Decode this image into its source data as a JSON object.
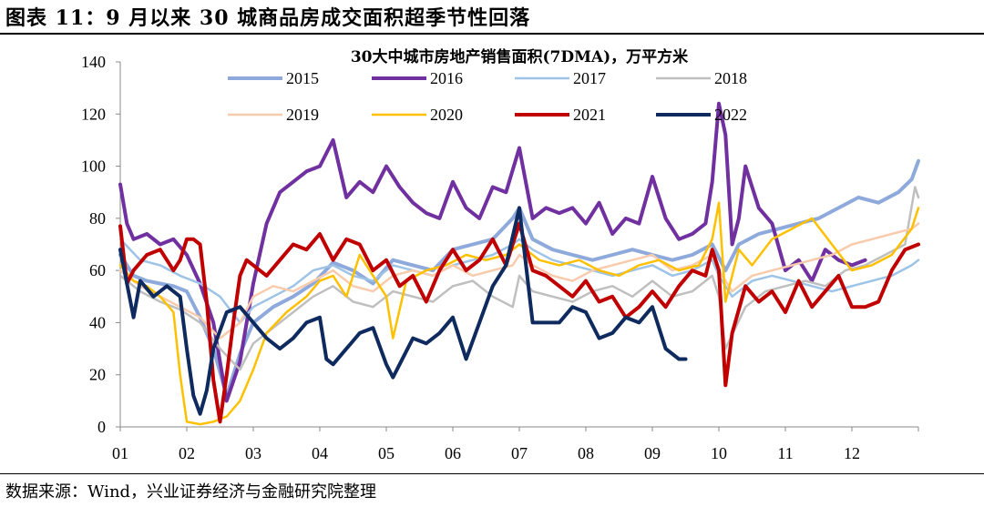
{
  "figure": {
    "title": "图表 11：9 月以来 30 城商品房成交面积超季节性回落",
    "source": "数据来源：Wind，兴业证券经济与金融研究院整理"
  },
  "chart_data": {
    "type": "line",
    "title": "30大中城市房地产销售面积(7DMA)，万平方米",
    "xlabel": "",
    "ylabel": "",
    "ylim": [
      0,
      140
    ],
    "yticks": [
      0,
      20,
      40,
      60,
      80,
      100,
      120,
      140
    ],
    "xlim": [
      1,
      13
    ],
    "xtick_positions": [
      1,
      2,
      3,
      4,
      5,
      6,
      7,
      8,
      9,
      10,
      11,
      12
    ],
    "xtick_labels": [
      "01",
      "02",
      "03",
      "04",
      "05",
      "06",
      "07",
      "08",
      "09",
      "10",
      "11",
      "12"
    ],
    "grid": false,
    "legend_position": "top-center",
    "series": [
      {
        "name": "2015",
        "color": "#8ea9db",
        "width": 4,
        "x": [
          1.0,
          1.2,
          1.4,
          1.6,
          1.8,
          2.0,
          2.2,
          2.4,
          2.6,
          2.8,
          3.0,
          3.3,
          3.6,
          3.9,
          4.2,
          4.5,
          4.8,
          5.1,
          5.4,
          5.7,
          6.0,
          6.3,
          6.6,
          6.9,
          7.0,
          7.2,
          7.5,
          7.8,
          8.1,
          8.4,
          8.7,
          9.0,
          9.3,
          9.6,
          9.9,
          10.0,
          10.1,
          10.3,
          10.6,
          10.9,
          11.2,
          11.5,
          11.8,
          12.1,
          12.4,
          12.7,
          12.9,
          13.0
        ],
        "y": [
          66,
          58,
          56,
          55,
          54,
          52,
          42,
          30,
          12,
          28,
          40,
          46,
          50,
          55,
          63,
          60,
          55,
          64,
          62,
          60,
          68,
          70,
          72,
          80,
          84,
          72,
          68,
          66,
          64,
          66,
          68,
          66,
          64,
          66,
          70,
          65,
          60,
          70,
          74,
          76,
          78,
          80,
          84,
          88,
          86,
          90,
          95,
          102
        ]
      },
      {
        "name": "2016",
        "color": "#7030a0",
        "width": 4,
        "x": [
          1.0,
          1.1,
          1.2,
          1.4,
          1.6,
          1.8,
          2.0,
          2.2,
          2.4,
          2.6,
          2.8,
          3.0,
          3.2,
          3.4,
          3.6,
          3.8,
          4.0,
          4.2,
          4.4,
          4.6,
          4.8,
          5.0,
          5.2,
          5.4,
          5.6,
          5.8,
          6.0,
          6.2,
          6.4,
          6.6,
          6.8,
          7.0,
          7.2,
          7.4,
          7.6,
          7.8,
          8.0,
          8.2,
          8.4,
          8.6,
          8.8,
          9.0,
          9.2,
          9.4,
          9.6,
          9.8,
          9.9,
          10.0,
          10.1,
          10.2,
          10.3,
          10.4,
          10.5,
          10.6,
          10.8,
          11.0,
          11.2,
          11.4,
          11.6,
          11.8,
          12.0,
          12.2
        ],
        "y": [
          93,
          78,
          72,
          74,
          70,
          72,
          66,
          55,
          40,
          10,
          25,
          55,
          78,
          90,
          94,
          98,
          100,
          110,
          88,
          94,
          90,
          100,
          92,
          86,
          82,
          80,
          94,
          84,
          80,
          92,
          90,
          107,
          80,
          84,
          82,
          84,
          78,
          86,
          74,
          80,
          78,
          96,
          80,
          72,
          74,
          78,
          94,
          124,
          112,
          70,
          80,
          100,
          92,
          84,
          78,
          60,
          64,
          56,
          68,
          64,
          62,
          64
        ]
      },
      {
        "name": "2017",
        "color": "#9dc3e6",
        "width": 2.5,
        "x": [
          1.0,
          1.3,
          1.6,
          1.9,
          2.2,
          2.5,
          2.8,
          3.0,
          3.3,
          3.6,
          3.9,
          4.2,
          4.5,
          4.8,
          5.1,
          5.4,
          5.7,
          6.0,
          6.3,
          6.6,
          6.9,
          7.0,
          7.2,
          7.5,
          7.8,
          8.1,
          8.4,
          8.7,
          9.0,
          9.3,
          9.6,
          9.9,
          10.0,
          10.2,
          10.5,
          10.8,
          11.1,
          11.4,
          11.7,
          12.0,
          12.3,
          12.6,
          12.9,
          13.0
        ],
        "y": [
          72,
          64,
          62,
          58,
          55,
          50,
          40,
          46,
          50,
          54,
          60,
          62,
          58,
          56,
          62,
          60,
          58,
          62,
          64,
          66,
          70,
          72,
          68,
          64,
          62,
          60,
          58,
          60,
          62,
          58,
          60,
          64,
          58,
          50,
          56,
          58,
          56,
          54,
          52,
          54,
          56,
          58,
          62,
          64
        ]
      },
      {
        "name": "2018",
        "color": "#bfbfbf",
        "width": 2.5,
        "x": [
          1.0,
          1.3,
          1.6,
          1.9,
          2.2,
          2.5,
          2.8,
          3.0,
          3.3,
          3.6,
          3.9,
          4.2,
          4.5,
          4.8,
          5.1,
          5.4,
          5.7,
          6.0,
          6.3,
          6.6,
          6.9,
          7.0,
          7.2,
          7.5,
          7.8,
          8.1,
          8.4,
          8.7,
          9.0,
          9.3,
          9.6,
          9.9,
          10.0,
          10.1,
          10.4,
          10.7,
          11.0,
          11.3,
          11.6,
          11.9,
          12.2,
          12.5,
          12.8,
          12.95,
          13.0
        ],
        "y": [
          58,
          52,
          48,
          45,
          40,
          30,
          22,
          32,
          38,
          44,
          50,
          54,
          48,
          46,
          52,
          50,
          48,
          54,
          56,
          50,
          46,
          58,
          52,
          50,
          48,
          52,
          54,
          50,
          56,
          50,
          52,
          58,
          50,
          30,
          46,
          52,
          54,
          56,
          54,
          60,
          62,
          66,
          70,
          92,
          88
        ]
      },
      {
        "name": "2019",
        "color": "#f8cbad",
        "width": 2.5,
        "x": [
          1.0,
          1.3,
          1.6,
          1.9,
          2.2,
          2.5,
          2.8,
          3.0,
          3.3,
          3.6,
          3.9,
          4.2,
          4.5,
          4.8,
          5.1,
          5.4,
          5.7,
          6.0,
          6.3,
          6.6,
          6.9,
          7.0,
          7.2,
          7.5,
          7.8,
          8.1,
          8.4,
          8.7,
          9.0,
          9.3,
          9.6,
          9.9,
          10.0,
          10.2,
          10.5,
          10.8,
          11.1,
          11.4,
          11.7,
          12.0,
          12.3,
          12.6,
          12.9,
          13.0
        ],
        "y": [
          60,
          54,
          50,
          46,
          42,
          34,
          40,
          50,
          54,
          52,
          56,
          60,
          54,
          52,
          58,
          60,
          58,
          62,
          58,
          60,
          62,
          66,
          62,
          58,
          56,
          60,
          62,
          64,
          66,
          60,
          62,
          66,
          60,
          52,
          58,
          60,
          62,
          64,
          66,
          70,
          72,
          74,
          76,
          78
        ]
      },
      {
        "name": "2020",
        "color": "#ffc000",
        "width": 2.5,
        "x": [
          1.0,
          1.2,
          1.4,
          1.6,
          1.8,
          1.9,
          2.0,
          2.2,
          2.4,
          2.6,
          2.8,
          3.0,
          3.2,
          3.5,
          3.8,
          4.0,
          4.2,
          4.4,
          4.6,
          4.8,
          5.0,
          5.1,
          5.3,
          5.6,
          5.9,
          6.2,
          6.5,
          6.8,
          7.0,
          7.3,
          7.6,
          7.9,
          8.2,
          8.5,
          8.8,
          9.1,
          9.4,
          9.7,
          9.9,
          10.0,
          10.1,
          10.3,
          10.5,
          10.8,
          11.1,
          11.4,
          11.7,
          12.0,
          12.3,
          12.6,
          12.9,
          13.0
        ],
        "y": [
          62,
          56,
          54,
          50,
          44,
          20,
          2,
          1,
          2,
          4,
          10,
          22,
          36,
          44,
          50,
          56,
          58,
          50,
          66,
          58,
          50,
          34,
          56,
          60,
          62,
          66,
          64,
          66,
          70,
          64,
          62,
          64,
          60,
          58,
          62,
          64,
          60,
          62,
          72,
          86,
          48,
          68,
          62,
          72,
          76,
          80,
          70,
          60,
          62,
          66,
          76,
          84
        ]
      },
      {
        "name": "2021",
        "color": "#c00000",
        "width": 4,
        "x": [
          1.0,
          1.1,
          1.2,
          1.4,
          1.6,
          1.8,
          1.9,
          2.0,
          2.1,
          2.2,
          2.3,
          2.4,
          2.5,
          2.6,
          2.7,
          2.8,
          2.9,
          3.0,
          3.2,
          3.4,
          3.6,
          3.8,
          4.0,
          4.2,
          4.4,
          4.6,
          4.8,
          5.0,
          5.2,
          5.4,
          5.6,
          5.8,
          6.0,
          6.2,
          6.4,
          6.6,
          6.8,
          7.0,
          7.2,
          7.4,
          7.6,
          7.8,
          8.0,
          8.2,
          8.4,
          8.6,
          8.8,
          9.0,
          9.2,
          9.4,
          9.6,
          9.8,
          9.9,
          10.0,
          10.1,
          10.2,
          10.4,
          10.6,
          10.8,
          11.0,
          11.2,
          11.4,
          11.6,
          11.8,
          12.0,
          12.2,
          12.4,
          12.6,
          12.8,
          13.0
        ],
        "y": [
          77,
          55,
          60,
          66,
          68,
          60,
          64,
          72,
          72,
          70,
          48,
          18,
          2,
          20,
          40,
          58,
          64,
          62,
          58,
          64,
          70,
          68,
          74,
          64,
          72,
          70,
          60,
          64,
          54,
          58,
          48,
          60,
          68,
          60,
          64,
          72,
          62,
          78,
          60,
          58,
          54,
          50,
          56,
          48,
          50,
          42,
          46,
          52,
          46,
          54,
          60,
          58,
          68,
          60,
          16,
          36,
          54,
          48,
          52,
          44,
          56,
          46,
          52,
          58,
          46,
          46,
          48,
          60,
          68,
          70
        ]
      },
      {
        "name": "2022",
        "color": "#0e2a5e",
        "width": 4,
        "x": [
          1.0,
          1.1,
          1.2,
          1.3,
          1.5,
          1.7,
          1.9,
          2.0,
          2.1,
          2.2,
          2.3,
          2.4,
          2.6,
          2.8,
          3.0,
          3.2,
          3.4,
          3.6,
          3.8,
          4.0,
          4.1,
          4.2,
          4.4,
          4.6,
          4.8,
          5.0,
          5.1,
          5.2,
          5.4,
          5.6,
          5.8,
          6.0,
          6.2,
          6.4,
          6.6,
          6.8,
          7.0,
          7.1,
          7.2,
          7.4,
          7.6,
          7.8,
          8.0,
          8.2,
          8.4,
          8.6,
          8.8,
          9.0,
          9.2,
          9.4,
          9.5
        ],
        "y": [
          68,
          55,
          42,
          56,
          50,
          54,
          50,
          30,
          12,
          5,
          14,
          30,
          44,
          46,
          40,
          34,
          30,
          34,
          40,
          42,
          26,
          24,
          30,
          36,
          38,
          24,
          19,
          24,
          34,
          32,
          36,
          42,
          26,
          40,
          54,
          62,
          84,
          62,
          40,
          40,
          40,
          46,
          44,
          34,
          36,
          42,
          40,
          46,
          30,
          26,
          26
        ]
      }
    ]
  }
}
